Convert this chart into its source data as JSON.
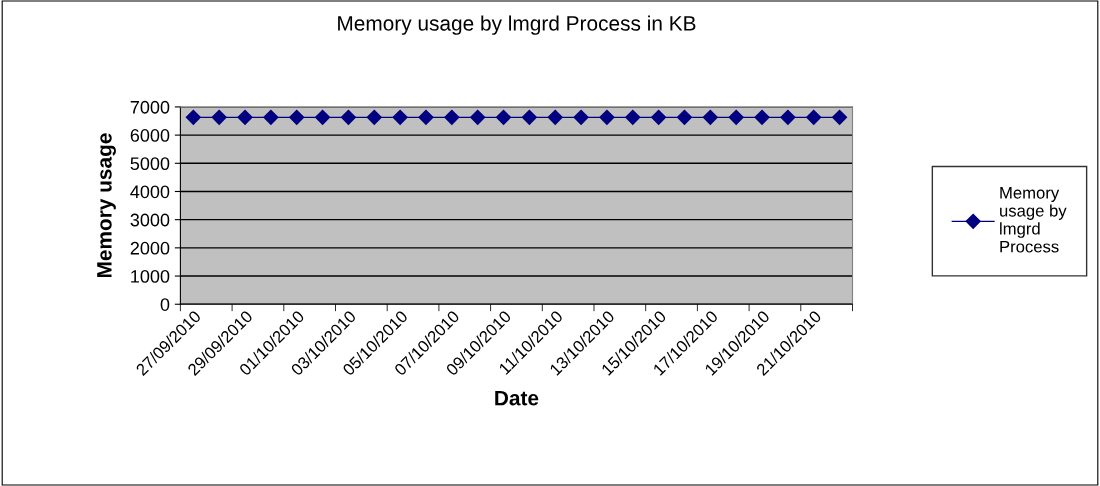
{
  "chart_data": {
    "type": "line",
    "title": "Memory usage by lmgrd Process in KB",
    "xlabel": "Date",
    "ylabel": "Memory usage",
    "categories": [
      "27/09/2010",
      null,
      "29/09/2010",
      null,
      "01/10/2010",
      null,
      "03/10/2010",
      null,
      "05/10/2010",
      null,
      "07/10/2010",
      null,
      "09/10/2010",
      null,
      "11/10/2010",
      null,
      "13/10/2010",
      null,
      "15/10/2010",
      null,
      "17/10/2010",
      null,
      "19/10/2010",
      null,
      "21/10/2010",
      null
    ],
    "series": [
      {
        "name": "Memory usage by lmgrd Process",
        "color": "#000080",
        "values": [
          6630,
          6630,
          6630,
          6630,
          6630,
          6630,
          6630,
          6630,
          6630,
          6630,
          6630,
          6630,
          6630,
          6630,
          6630,
          6630,
          6630,
          6630,
          6630,
          6630,
          6630,
          6630,
          6630,
          6630,
          6630,
          6630
        ]
      }
    ],
    "ylim": [
      0,
      7000
    ],
    "yticks": [
      0,
      1000,
      2000,
      3000,
      4000,
      5000,
      6000,
      7000
    ],
    "grid": "y",
    "legend": "right",
    "marker": "diamond",
    "line_style": "solid"
  }
}
